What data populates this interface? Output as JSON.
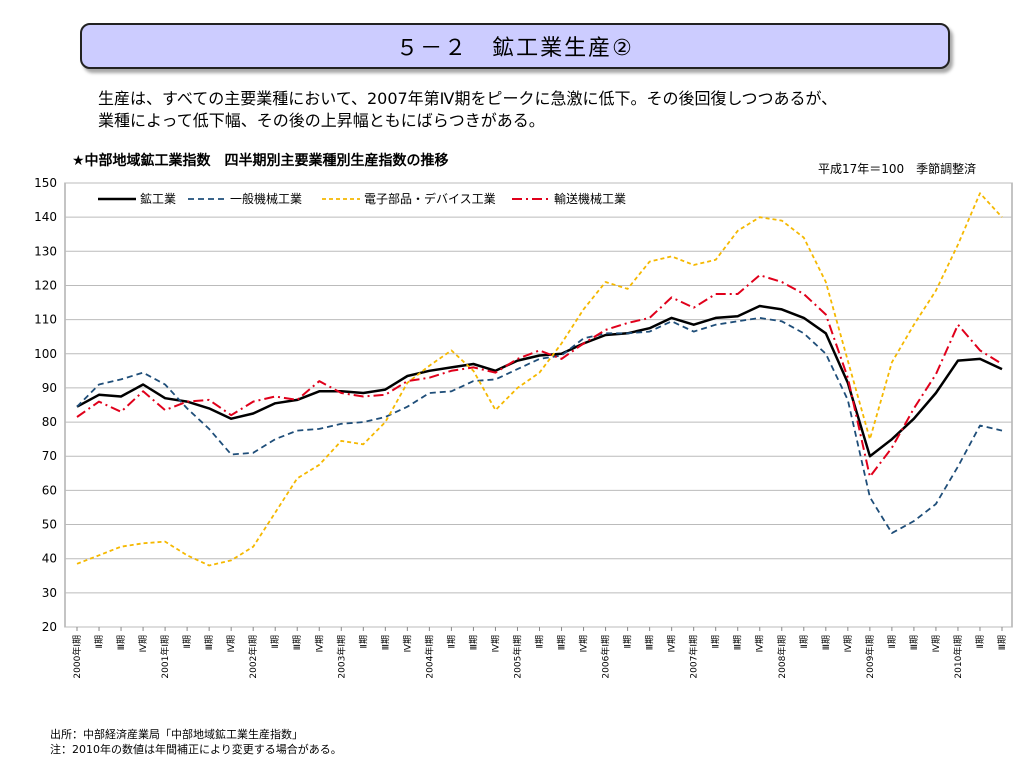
{
  "header": {
    "title": "５－２　鉱工業生産②",
    "summary_line1": "生産は、すべての主要業種において、2007年第Ⅳ期をピークに急激に低下。その後回復しつつあるが、",
    "summary_line2": "業種によって低下幅、その後の上昇幅ともにばらつきがある。"
  },
  "footer": {
    "source": "出所：中部経済産業局「中部地域鉱工業生産指数」",
    "note": "注：2010年の数値は年間補正により変更する場合がある。"
  },
  "chart_data": {
    "type": "line",
    "title": "★中部地域鉱工業指数　四半期別主要業種別生産指数の推移",
    "subtitle": "平成17年＝100　季節調整済",
    "xlabel": "",
    "ylabel": "",
    "ylim": [
      20,
      150
    ],
    "yticks": [
      20,
      30,
      40,
      50,
      60,
      70,
      80,
      90,
      100,
      110,
      120,
      130,
      140,
      150
    ],
    "grid": true,
    "legend": "top-left",
    "categories": [
      "2000年Ⅰ期",
      "Ⅱ期",
      "Ⅲ期",
      "Ⅳ期",
      "2001年Ⅰ期",
      "Ⅱ期",
      "Ⅲ期",
      "Ⅳ期",
      "2002年Ⅰ期",
      "Ⅱ期",
      "Ⅲ期",
      "Ⅳ期",
      "2003年Ⅰ期",
      "Ⅱ期",
      "Ⅲ期",
      "Ⅳ期",
      "2004年Ⅰ期",
      "Ⅱ期",
      "Ⅲ期",
      "Ⅳ期",
      "2005年Ⅰ期",
      "Ⅱ期",
      "Ⅲ期",
      "Ⅳ期",
      "2006年Ⅰ期",
      "Ⅱ期",
      "Ⅲ期",
      "Ⅳ期",
      "2007年Ⅰ期",
      "Ⅱ期",
      "Ⅲ期",
      "Ⅳ期",
      "2008年Ⅰ期",
      "Ⅱ期",
      "Ⅲ期",
      "Ⅳ期",
      "2009年Ⅰ期",
      "Ⅱ期",
      "Ⅲ期",
      "Ⅳ期",
      "2010年Ⅰ期",
      "Ⅱ期",
      "Ⅲ期"
    ],
    "series": [
      {
        "name": "鉱工業",
        "color": "#000000",
        "dash": "solid",
        "values": [
          84.5,
          88,
          87.5,
          91,
          87,
          86,
          84,
          81,
          82.5,
          85.5,
          86.5,
          89,
          89,
          88.5,
          89.5,
          93.5,
          95,
          96,
          97,
          95,
          98,
          99.5,
          100,
          103,
          105.5,
          106,
          107.5,
          110.5,
          108.5,
          110.5,
          111,
          114,
          113,
          110.5,
          106,
          91.5,
          70,
          75,
          81,
          88.5,
          98,
          98.5,
          95.5
        ]
      },
      {
        "name": "一般機械工業",
        "color": "#1f4e79",
        "dash": "dashed",
        "values": [
          84.5,
          91,
          92.5,
          94.5,
          91,
          84,
          78,
          70.5,
          71,
          75,
          77.5,
          78,
          79.5,
          80,
          81.5,
          84.5,
          88.5,
          89,
          92,
          92.5,
          95.5,
          98.5,
          99.5,
          104.5,
          106,
          106,
          106.5,
          109.5,
          106.5,
          108.5,
          109.5,
          110.5,
          109.5,
          106,
          100,
          86.5,
          58,
          47.5,
          51,
          56,
          67,
          79,
          77.5
        ]
      },
      {
        "name": "電子部品・デバイス工業",
        "color": "#f5b800",
        "dash": "short-dash",
        "values": [
          38.5,
          41,
          43.5,
          44.5,
          45,
          41,
          38,
          39.5,
          43.5,
          53.5,
          63.5,
          67.5,
          74.5,
          73.5,
          80,
          91.5,
          96.5,
          101,
          95,
          83.5,
          90,
          94.5,
          103,
          113,
          121,
          119,
          127,
          128.5,
          126,
          127.5,
          136,
          140,
          139,
          134,
          121,
          98,
          75,
          97.5,
          108.5,
          118.5,
          132,
          147,
          140
        ]
      },
      {
        "name": "輸送機械工業",
        "color": "#e0001b",
        "dash": "dash-dot",
        "values": [
          81.5,
          86,
          83,
          89,
          83.5,
          86,
          86.5,
          82,
          86,
          87.5,
          86.5,
          92,
          88.5,
          87.5,
          88,
          92,
          93,
          95,
          96,
          94.5,
          98.5,
          101,
          98.5,
          103,
          107,
          109,
          110.5,
          116.5,
          113.5,
          117.5,
          117.5,
          123,
          121,
          117.5,
          111.5,
          93,
          64,
          72.5,
          84,
          94,
          108.5,
          101,
          97
        ]
      }
    ]
  }
}
